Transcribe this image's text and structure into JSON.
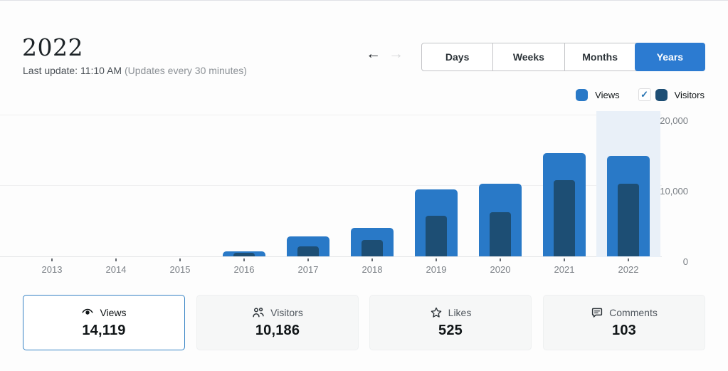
{
  "header": {
    "title": "2022",
    "last_update_label": "Last update: 11:10 AM",
    "last_update_note": "(Updates every 30 minutes)"
  },
  "nav": {
    "prev_arrow": "←",
    "next_arrow": "→",
    "tabs": [
      {
        "label": "Days",
        "active": false
      },
      {
        "label": "Weeks",
        "active": false
      },
      {
        "label": "Months",
        "active": false
      },
      {
        "label": "Years",
        "active": true
      }
    ]
  },
  "legend": {
    "views_label": "Views",
    "visitors_label": "Visitors",
    "views_color": "#2979c7",
    "visitors_color": "#1d4e74",
    "visitors_checkmark": "✓",
    "visitors_checked": true
  },
  "chart_data": {
    "type": "bar",
    "title": "Views and Visitors per year",
    "categories": [
      "2013",
      "2014",
      "2015",
      "2016",
      "2017",
      "2018",
      "2019",
      "2020",
      "2021",
      "2022"
    ],
    "series": [
      {
        "name": "Views",
        "color": "#2979c7",
        "values": [
          0,
          0,
          0,
          700,
          2850,
          3950,
          9400,
          10200,
          14500,
          14119
        ]
      },
      {
        "name": "Visitors",
        "color": "#1d4e74",
        "values": [
          0,
          0,
          0,
          480,
          1440,
          2280,
          5700,
          6200,
          10700,
          10186
        ]
      }
    ],
    "xlabel": "",
    "ylabel": "",
    "ylim": [
      0,
      20000
    ],
    "yticks": [
      {
        "label": "20,000",
        "value": 20000
      },
      {
        "label": "10,000",
        "value": 10000
      },
      {
        "label": "0",
        "value": 0
      }
    ],
    "grid": true,
    "legend_position": "top-right",
    "highlighted_category": "2022",
    "highlight_color": "#e9f0f8"
  },
  "summary_cards": [
    {
      "icon": "eye-icon",
      "label": "Views",
      "value": "14,119",
      "selected": true
    },
    {
      "icon": "people-icon",
      "label": "Visitors",
      "value": "10,186",
      "selected": false
    },
    {
      "icon": "star-icon",
      "label": "Likes",
      "value": "525",
      "selected": false
    },
    {
      "icon": "comment-icon",
      "label": "Comments",
      "value": "103",
      "selected": false
    }
  ]
}
